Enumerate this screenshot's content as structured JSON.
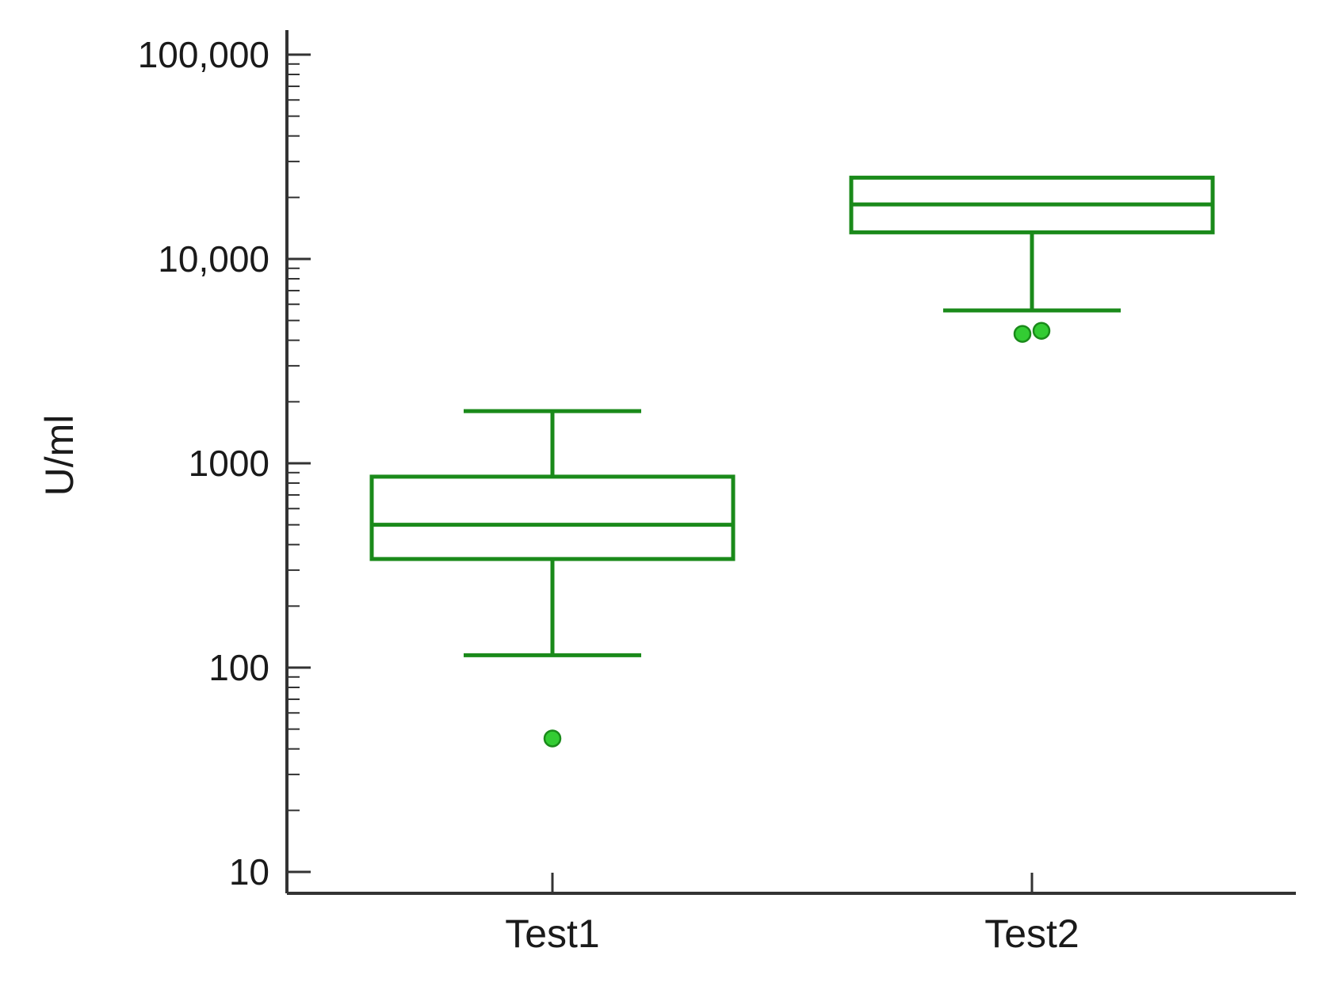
{
  "chart_data": {
    "type": "box",
    "ylabel": "U/ml",
    "yscale": "log",
    "ylim": [
      10,
      100000
    ],
    "ytick_values": [
      10,
      100,
      1000,
      10000,
      100000
    ],
    "ytick_labels": [
      "10",
      "100",
      "1000",
      "10,000",
      "100,000"
    ],
    "categories": [
      "Test1",
      "Test2"
    ],
    "boxes": [
      {
        "category": "Test1",
        "whisker_low": 115,
        "q1": 340,
        "median": 500,
        "q3": 860,
        "whisker_high": 1800,
        "outliers": [
          45
        ]
      },
      {
        "category": "Test2",
        "whisker_low": 5600,
        "q1": 13500,
        "median": 18500,
        "q3": 25000,
        "whisker_high": 25000,
        "outliers": [
          4300,
          4450
        ]
      }
    ],
    "grid": false,
    "colors": {
      "box": "#1a8a1a",
      "outlier_fill": "#33cc33",
      "outlier_stroke": "#1a8a1a",
      "axis": "#333333"
    }
  }
}
